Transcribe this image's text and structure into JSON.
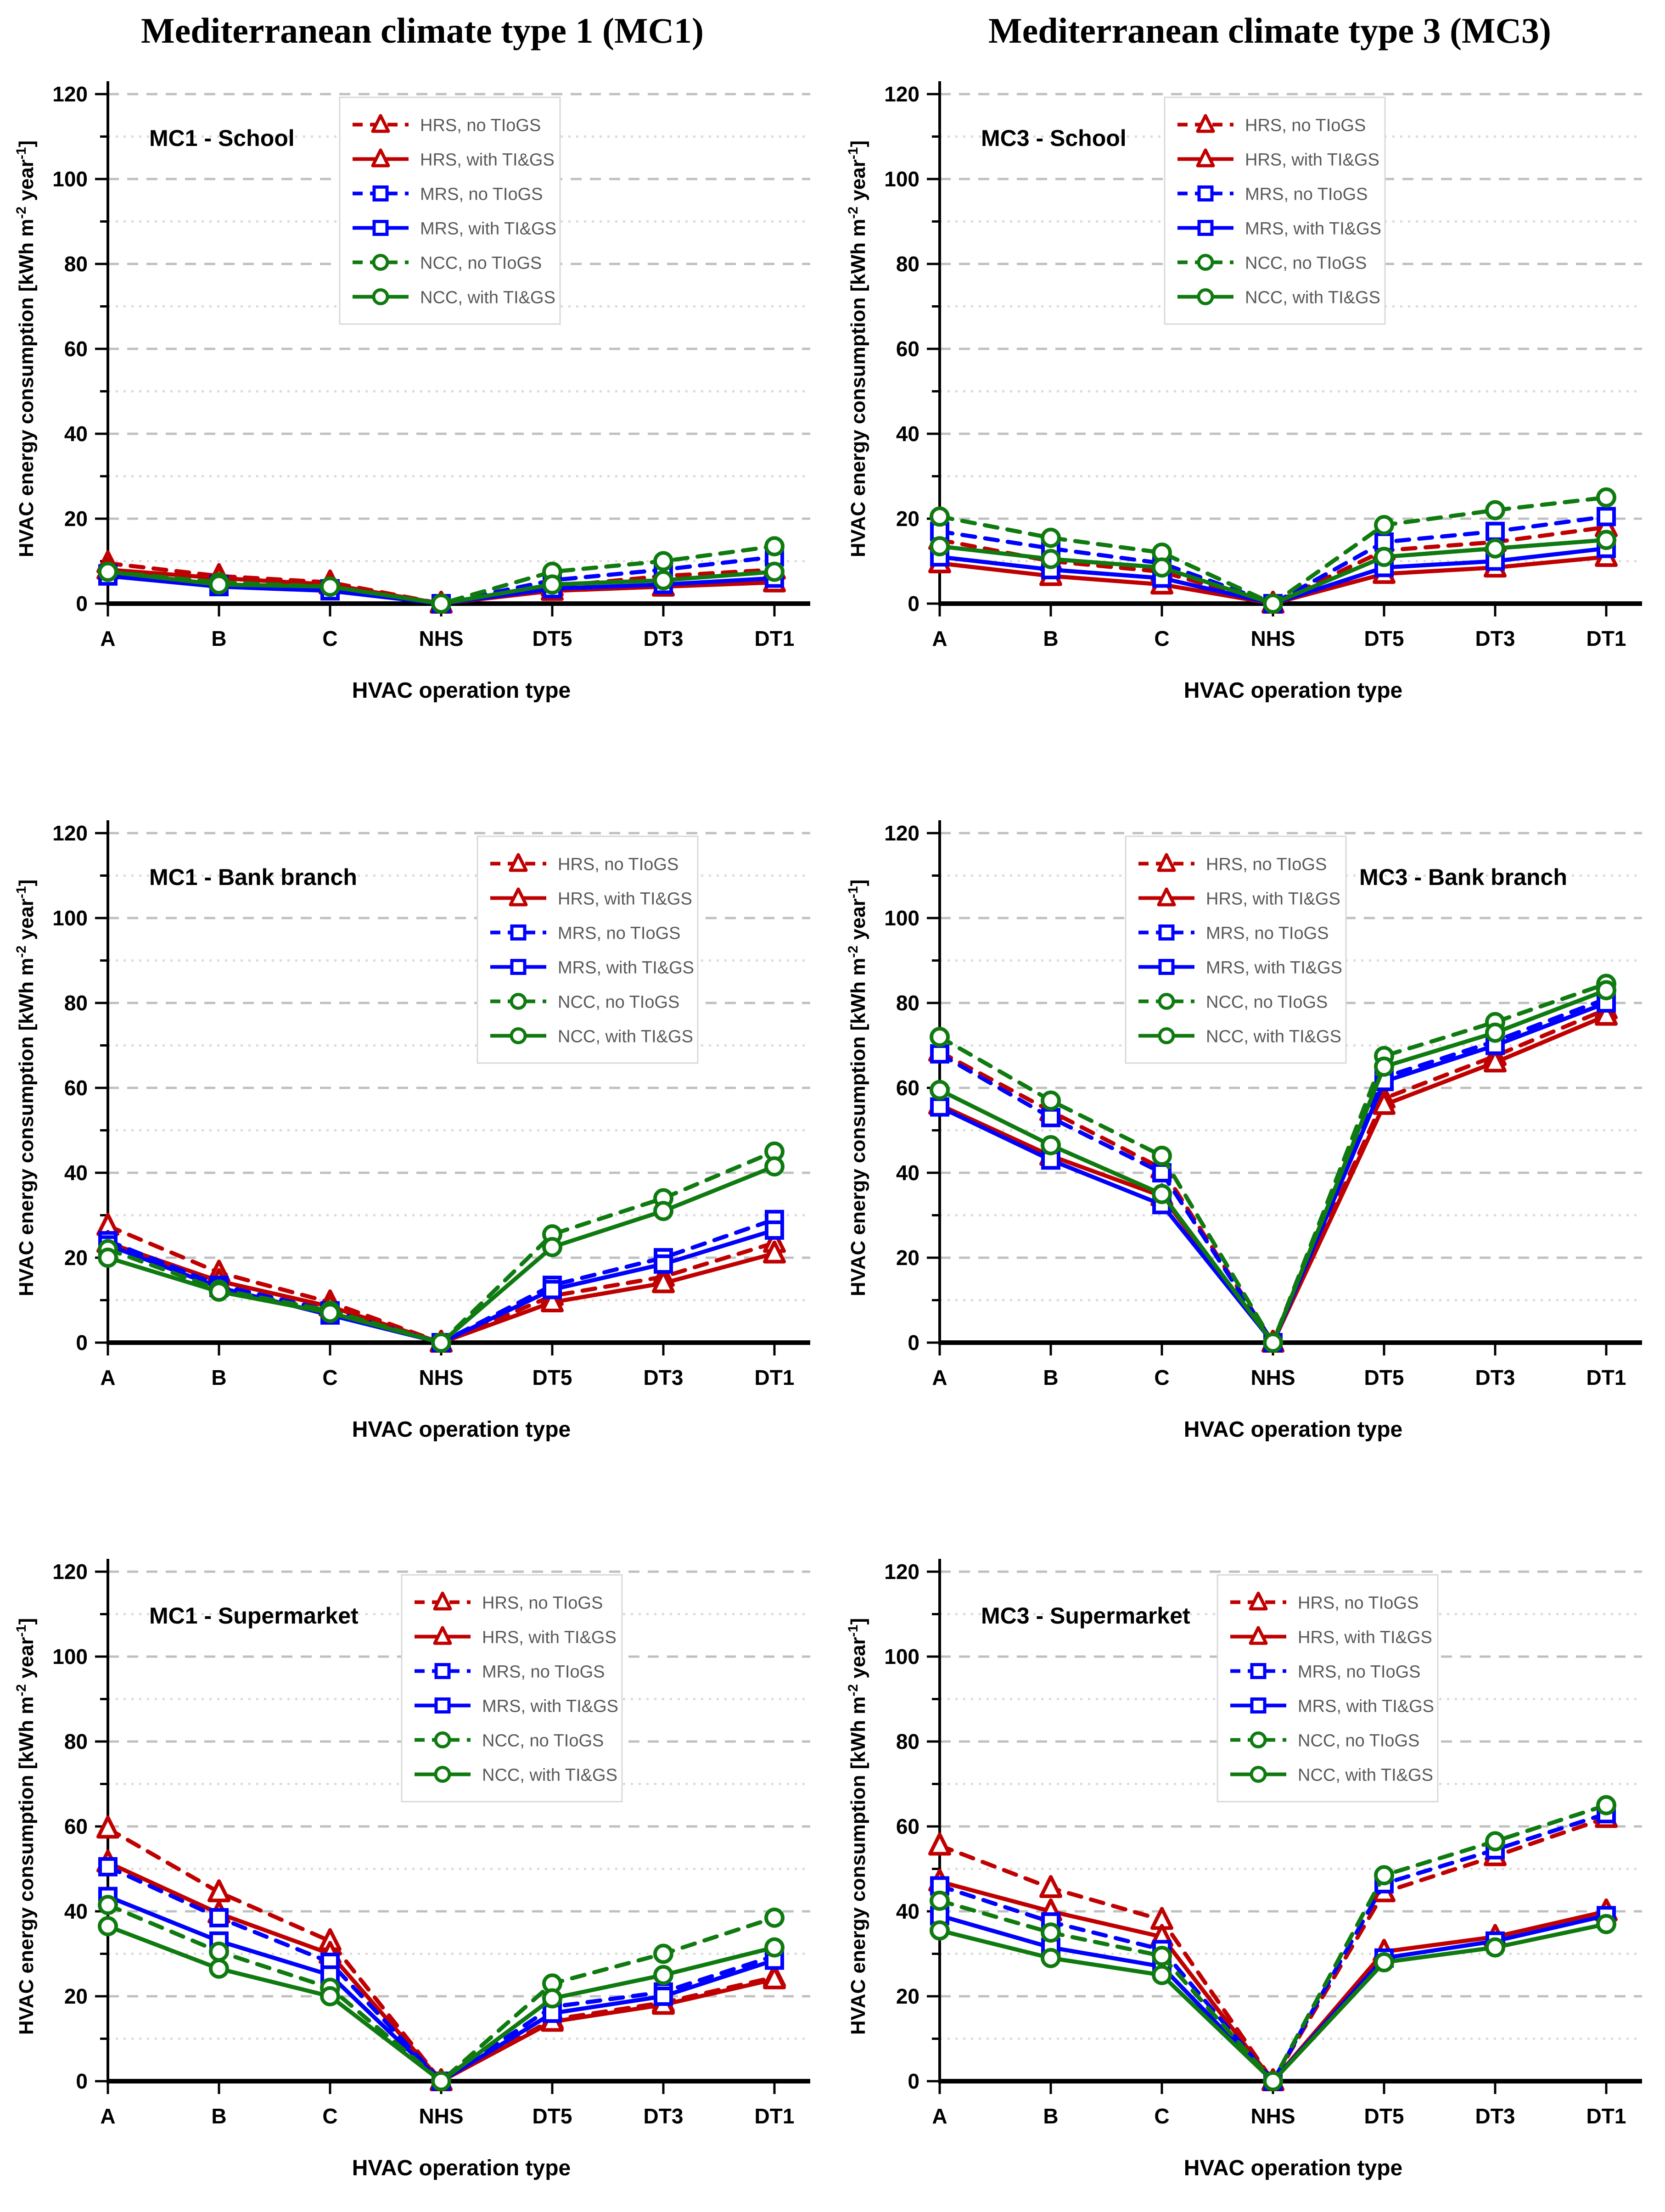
{
  "header": {
    "title_left": "Mediterranean climate type 1 (MC1)",
    "title_right": "Mediterranean climate type 3 (MC3)"
  },
  "axis": {
    "xlabel": "HVAC operation type",
    "ylabel_prefix": "HVAC energy consumption  [kWh m",
    "ylabel_sup_a": "-2",
    "ylabel_mid": " year",
    "ylabel_sup_b": "-1",
    "ylabel_suffix": "]",
    "categories": [
      "A",
      "B",
      "C",
      "NHS",
      "DT5",
      "DT3",
      "DT1"
    ],
    "ytick_labels": [
      "0",
      "20",
      "40",
      "60",
      "80",
      "100",
      "120"
    ],
    "ymin": 0,
    "ymax": 120,
    "ytick_major": 20,
    "ytick_minor": 10,
    "grid_major_color": "#BFBFBF",
    "grid_minor_color": "#DBDBDB"
  },
  "legend": {
    "text_color": "#595959",
    "entries": [
      {
        "label": "HRS, no TIoGS",
        "color": "#C00000",
        "dashed": true,
        "marker": "triangle"
      },
      {
        "label": "HRS, with TI&GS",
        "color": "#C00000",
        "dashed": false,
        "marker": "triangle"
      },
      {
        "label": "MRS, no TIoGS",
        "color": "#0000FF",
        "dashed": true,
        "marker": "square"
      },
      {
        "label": "MRS, with TI&GS",
        "color": "#0000FF",
        "dashed": false,
        "marker": "square"
      },
      {
        "label": "NCC, no TIoGS",
        "color": "#0F7A0F",
        "dashed": true,
        "marker": "circle"
      },
      {
        "label": "NCC, with TI&GS",
        "color": "#0F7A0F",
        "dashed": false,
        "marker": "circle"
      }
    ]
  },
  "chart_data": [
    {
      "id": "mc1-school",
      "type": "line",
      "title": "MC1 - School",
      "xlabel": "HVAC operation type",
      "ylabel": "HVAC energy consumption [kWh m-2 year-1]",
      "categories": [
        "A",
        "B",
        "C",
        "NHS",
        "DT5",
        "DT3",
        "DT1"
      ],
      "ylim": [
        0,
        120
      ],
      "series": [
        {
          "name": "HRS, no TIoGS",
          "values": [
            9.5,
            6.5,
            5,
            0,
            4,
            6.5,
            8
          ]
        },
        {
          "name": "HRS, with TI&GS",
          "values": [
            8,
            6,
            4.5,
            0,
            3,
            4,
            5
          ]
        },
        {
          "name": "MRS, no TIoGS",
          "values": [
            7,
            4.5,
            3.5,
            0,
            5.5,
            8,
            11
          ]
        },
        {
          "name": "MRS, with TI&GS",
          "values": [
            6.5,
            4,
            3,
            0,
            3.5,
            4.5,
            6
          ]
        },
        {
          "name": "NCC, no TIoGS",
          "values": [
            7.5,
            5,
            4,
            0,
            7.5,
            10,
            13.5
          ]
        },
        {
          "name": "NCC, with TI&GS",
          "values": [
            7.5,
            4.5,
            4,
            0,
            4.5,
            5.5,
            7.5
          ]
        }
      ]
    },
    {
      "id": "mc3-school",
      "type": "line",
      "title": "MC3 - School",
      "xlabel": "HVAC operation type",
      "ylabel": "HVAC energy consumption [kWh m-2 year-1]",
      "categories": [
        "A",
        "B",
        "C",
        "NHS",
        "DT5",
        "DT3",
        "DT1"
      ],
      "ylim": [
        0,
        120
      ],
      "series": [
        {
          "name": "HRS, no TIoGS",
          "values": [
            15,
            10,
            7.5,
            0,
            12.5,
            14.5,
            18
          ]
        },
        {
          "name": "HRS, with TI&GS",
          "values": [
            9.5,
            6.5,
            4.5,
            0,
            7,
            8.5,
            11
          ]
        },
        {
          "name": "MRS, no TIoGS",
          "values": [
            17,
            13,
            9.5,
            0,
            14.5,
            17,
            20.5
          ]
        },
        {
          "name": "MRS, with TI&GS",
          "values": [
            11,
            8,
            6,
            0,
            8.5,
            10,
            13
          ]
        },
        {
          "name": "NCC, no TIoGS",
          "values": [
            20.5,
            15.5,
            12,
            0,
            18.5,
            22,
            25
          ]
        },
        {
          "name": "NCC, with TI&GS",
          "values": [
            13.5,
            10.5,
            8.5,
            0,
            11,
            13,
            15
          ]
        }
      ]
    },
    {
      "id": "mc1-bank-branch",
      "type": "line",
      "title": "MC1 - Bank branch",
      "xlabel": "HVAC operation type",
      "ylabel": "HVAC energy consumption [kWh m-2 year-1]",
      "categories": [
        "A",
        "B",
        "C",
        "NHS",
        "DT5",
        "DT3",
        "DT1"
      ],
      "ylim": [
        0,
        120
      ],
      "series": [
        {
          "name": "HRS, no TIoGS",
          "values": [
            27.5,
            16.5,
            9.5,
            0,
            11,
            15.5,
            23.5
          ]
        },
        {
          "name": "HRS, with TI&GS",
          "values": [
            23.5,
            14.5,
            8.5,
            0,
            9.5,
            14,
            21
          ]
        },
        {
          "name": "MRS, no TIoGS",
          "values": [
            24,
            13.5,
            7.5,
            0,
            13.5,
            20,
            29
          ]
        },
        {
          "name": "MRS, with TI&GS",
          "values": [
            23,
            13,
            6.5,
            0,
            12.5,
            18.5,
            26.5
          ]
        },
        {
          "name": "NCC, no TIoGS",
          "values": [
            22,
            12.5,
            7.5,
            0,
            25.5,
            34,
            45
          ]
        },
        {
          "name": "NCC, with TI&GS",
          "values": [
            20,
            12,
            7,
            0,
            22.5,
            31,
            41.5
          ]
        }
      ]
    },
    {
      "id": "mc3-bank-branch",
      "type": "line",
      "title": "MC3 - Bank branch",
      "xlabel": "HVAC operation type",
      "ylabel": "HVAC energy consumption [kWh m-2 year-1]",
      "categories": [
        "A",
        "B",
        "C",
        "NHS",
        "DT5",
        "DT3",
        "DT1"
      ],
      "ylim": [
        0,
        120
      ],
      "series": [
        {
          "name": "HRS, no TIoGS",
          "values": [
            68.5,
            54.5,
            41,
            0,
            57.5,
            67.5,
            78.5
          ]
        },
        {
          "name": "HRS, with TI&GS",
          "values": [
            56,
            44,
            34.5,
            0,
            56,
            66,
            77
          ]
        },
        {
          "name": "MRS, no TIoGS",
          "values": [
            68,
            53,
            40,
            0,
            62.5,
            71,
            81
          ]
        },
        {
          "name": "MRS, with TI&GS",
          "values": [
            55.5,
            43,
            32.5,
            0,
            61.5,
            70,
            80
          ]
        },
        {
          "name": "NCC, no TIoGS",
          "values": [
            72,
            57,
            44,
            0,
            67.5,
            75.5,
            84.5
          ]
        },
        {
          "name": "NCC, with TI&GS",
          "values": [
            59.5,
            46.5,
            35,
            0,
            65,
            73,
            83
          ]
        }
      ]
    },
    {
      "id": "mc1-supermarket",
      "type": "line",
      "title": "MC1 - Supermarket",
      "xlabel": "HVAC operation type",
      "ylabel": "HVAC energy consumption [kWh m-2 year-1]",
      "categories": [
        "A",
        "B",
        "C",
        "NHS",
        "DT5",
        "DT3",
        "DT1"
      ],
      "ylim": [
        0,
        120
      ],
      "series": [
        {
          "name": "HRS, no TIoGS",
          "values": [
            59.5,
            44.5,
            33,
            0,
            14.5,
            18.5,
            24.5
          ]
        },
        {
          "name": "HRS, with TI&GS",
          "values": [
            51.5,
            39.5,
            30,
            0,
            14,
            18,
            24
          ]
        },
        {
          "name": "MRS, no TIoGS",
          "values": [
            50.5,
            38.5,
            28,
            0,
            17.5,
            21,
            29.5
          ]
        },
        {
          "name": "MRS, with TI&GS",
          "values": [
            43.5,
            33,
            25,
            0,
            16,
            20,
            28.5
          ]
        },
        {
          "name": "NCC, no TIoGS",
          "values": [
            41.5,
            30.5,
            22,
            0,
            23,
            30,
            38.5
          ]
        },
        {
          "name": "NCC, with TI&GS",
          "values": [
            36.5,
            26.5,
            20,
            0,
            19.5,
            25,
            31.5
          ]
        }
      ]
    },
    {
      "id": "mc3-supermarket",
      "type": "line",
      "title": "MC3 - Supermarket",
      "xlabel": "HVAC operation type",
      "ylabel": "HVAC energy consumption [kWh m-2 year-1]",
      "categories": [
        "A",
        "B",
        "C",
        "NHS",
        "DT5",
        "DT3",
        "DT1"
      ],
      "ylim": [
        0,
        120
      ],
      "series": [
        {
          "name": "HRS, no TIoGS",
          "values": [
            55.5,
            45.5,
            38,
            0,
            44.5,
            53,
            62
          ]
        },
        {
          "name": "HRS, with TI&GS",
          "values": [
            47,
            40,
            34,
            0,
            30.5,
            34,
            40
          ]
        },
        {
          "name": "MRS, no TIoGS",
          "values": [
            46,
            37.5,
            31,
            0,
            46.5,
            54.5,
            63
          ]
        },
        {
          "name": "MRS, with TI&GS",
          "values": [
            39,
            31.5,
            27,
            0,
            29,
            33,
            39
          ]
        },
        {
          "name": "NCC, no TIoGS",
          "values": [
            42.5,
            35,
            29.5,
            0,
            48.5,
            56.5,
            65
          ]
        },
        {
          "name": "NCC, with TI&GS",
          "values": [
            35.5,
            29,
            25,
            0,
            28,
            31.5,
            37
          ]
        }
      ]
    }
  ]
}
